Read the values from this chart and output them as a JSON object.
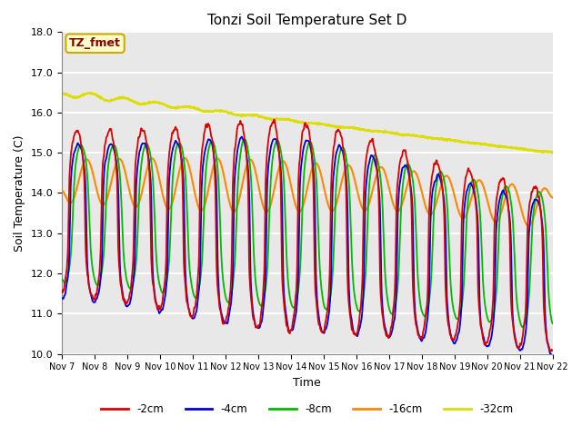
{
  "title": "Tonzi Soil Temperature Set D",
  "xlabel": "Time",
  "ylabel": "Soil Temperature (C)",
  "ylim": [
    10.0,
    18.0
  ],
  "yticks": [
    10.0,
    11.0,
    12.0,
    13.0,
    14.0,
    15.0,
    16.0,
    17.0,
    18.0
  ],
  "xtick_labels": [
    "Nov 7",
    "Nov 8",
    "Nov 9",
    "Nov 10",
    "Nov 11",
    "Nov 12",
    "Nov 13",
    "Nov 14",
    "Nov 15",
    "Nov 16",
    "Nov 17",
    "Nov 18",
    "Nov 19",
    "Nov 20",
    "Nov 21",
    "Nov 22"
  ],
  "legend_label": "TZ_fmet",
  "series_labels": [
    "-2cm",
    "-4cm",
    "-8cm",
    "-16cm",
    "-32cm"
  ],
  "series_colors": [
    "#dd0000",
    "#0000dd",
    "#00bb00",
    "#ff8800",
    "#dddd00"
  ],
  "background_color": "#e8e8e8",
  "grid_color": "#ffffff",
  "legend_box_color": "#ffffcc",
  "legend_box_edge": "#ccaa00"
}
